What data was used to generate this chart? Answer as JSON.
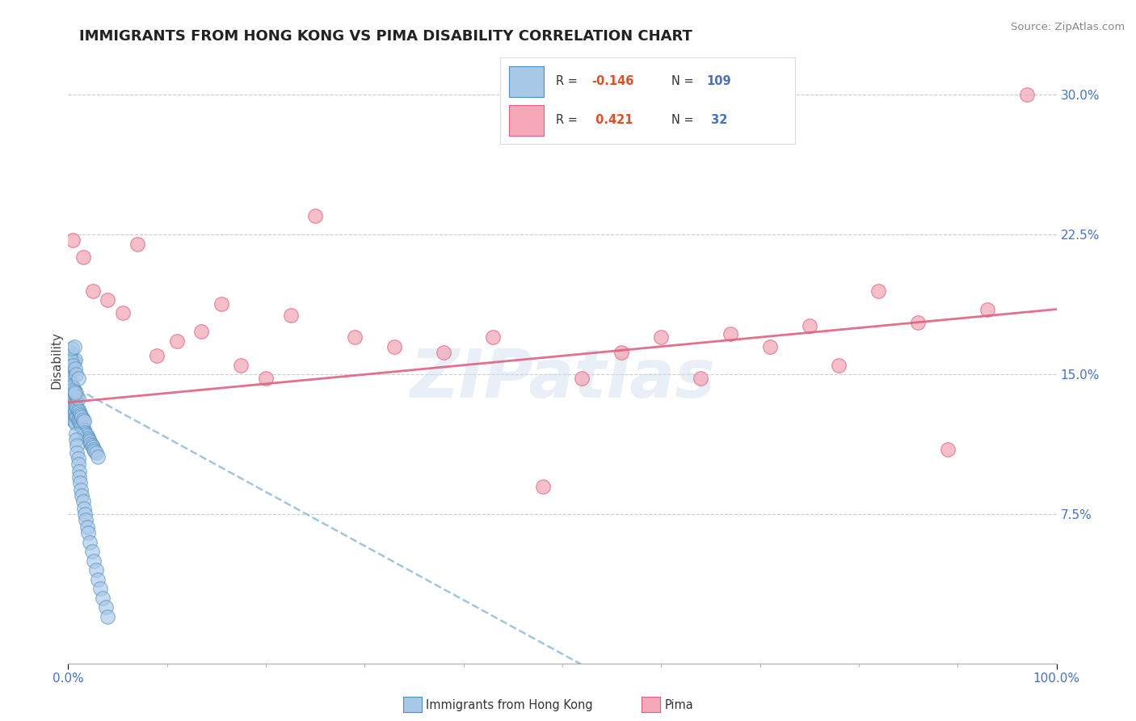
{
  "title": "IMMIGRANTS FROM HONG KONG VS PIMA DISABILITY CORRELATION CHART",
  "source": "Source: ZipAtlas.com",
  "ylabel": "Disability",
  "xlabel": "",
  "xlim": [
    0.0,
    1.0
  ],
  "ylim": [
    -0.005,
    0.32
  ],
  "yticks": [
    0.075,
    0.15,
    0.225,
    0.3
  ],
  "ytick_labels": [
    "7.5%",
    "15.0%",
    "22.5%",
    "30.0%"
  ],
  "xtick_labels": [
    "0.0%",
    "100.0%"
  ],
  "blue_R": -0.146,
  "blue_N": 109,
  "pink_R": 0.421,
  "pink_N": 32,
  "blue_color": "#a8c8e8",
  "pink_color": "#f4a8b8",
  "blue_edge_color": "#5090c0",
  "pink_edge_color": "#e06080",
  "pink_line_color": "#e06080",
  "blue_line_color": "#88b8d8",
  "background_color": "#ffffff",
  "watermark": "ZIPatlas",
  "title_fontsize": 13,
  "blue_x": [
    0.001,
    0.001,
    0.002,
    0.002,
    0.002,
    0.003,
    0.003,
    0.003,
    0.003,
    0.004,
    0.004,
    0.004,
    0.004,
    0.005,
    0.005,
    0.005,
    0.005,
    0.005,
    0.006,
    0.006,
    0.006,
    0.006,
    0.007,
    0.007,
    0.007,
    0.007,
    0.008,
    0.008,
    0.008,
    0.009,
    0.009,
    0.009,
    0.01,
    0.01,
    0.01,
    0.011,
    0.011,
    0.012,
    0.012,
    0.013,
    0.013,
    0.014,
    0.014,
    0.015,
    0.015,
    0.016,
    0.016,
    0.017,
    0.018,
    0.019,
    0.02,
    0.021,
    0.022,
    0.023,
    0.024,
    0.025,
    0.026,
    0.027,
    0.028,
    0.03,
    0.001,
    0.001,
    0.002,
    0.002,
    0.003,
    0.003,
    0.004,
    0.004,
    0.005,
    0.005,
    0.006,
    0.006,
    0.007,
    0.007,
    0.008,
    0.008,
    0.009,
    0.009,
    0.01,
    0.01,
    0.011,
    0.011,
    0.012,
    0.013,
    0.014,
    0.015,
    0.016,
    0.017,
    0.018,
    0.019,
    0.02,
    0.022,
    0.024,
    0.026,
    0.028,
    0.03,
    0.032,
    0.035,
    0.038,
    0.04,
    0.001,
    0.002,
    0.003,
    0.004,
    0.005,
    0.006,
    0.007,
    0.008,
    0.01
  ],
  "blue_y": [
    0.135,
    0.14,
    0.132,
    0.138,
    0.145,
    0.13,
    0.136,
    0.142,
    0.128,
    0.133,
    0.139,
    0.144,
    0.127,
    0.131,
    0.137,
    0.143,
    0.126,
    0.132,
    0.129,
    0.134,
    0.14,
    0.125,
    0.13,
    0.136,
    0.141,
    0.124,
    0.128,
    0.133,
    0.139,
    0.127,
    0.132,
    0.138,
    0.126,
    0.131,
    0.137,
    0.125,
    0.13,
    0.124,
    0.129,
    0.123,
    0.128,
    0.122,
    0.127,
    0.121,
    0.126,
    0.12,
    0.125,
    0.119,
    0.118,
    0.117,
    0.116,
    0.115,
    0.114,
    0.113,
    0.112,
    0.111,
    0.11,
    0.109,
    0.108,
    0.106,
    0.15,
    0.148,
    0.152,
    0.146,
    0.154,
    0.144,
    0.155,
    0.143,
    0.156,
    0.142,
    0.157,
    0.141,
    0.158,
    0.14,
    0.118,
    0.115,
    0.112,
    0.108,
    0.105,
    0.102,
    0.098,
    0.095,
    0.092,
    0.088,
    0.085,
    0.082,
    0.078,
    0.075,
    0.072,
    0.068,
    0.065,
    0.06,
    0.055,
    0.05,
    0.045,
    0.04,
    0.035,
    0.03,
    0.025,
    0.02,
    0.16,
    0.162,
    0.158,
    0.164,
    0.155,
    0.165,
    0.153,
    0.15,
    0.148
  ],
  "pink_x": [
    0.005,
    0.015,
    0.025,
    0.04,
    0.055,
    0.07,
    0.09,
    0.11,
    0.135,
    0.155,
    0.175,
    0.2,
    0.225,
    0.25,
    0.29,
    0.33,
    0.38,
    0.43,
    0.48,
    0.52,
    0.56,
    0.6,
    0.64,
    0.67,
    0.71,
    0.75,
    0.78,
    0.82,
    0.86,
    0.89,
    0.93,
    0.97
  ],
  "pink_y": [
    0.222,
    0.213,
    0.195,
    0.19,
    0.183,
    0.22,
    0.16,
    0.168,
    0.173,
    0.188,
    0.155,
    0.148,
    0.182,
    0.235,
    0.17,
    0.165,
    0.162,
    0.17,
    0.09,
    0.148,
    0.162,
    0.17,
    0.148,
    0.172,
    0.165,
    0.176,
    0.155,
    0.195,
    0.178,
    0.11,
    0.185,
    0.3
  ],
  "legend_blue_text_color": "#e05020",
  "legend_pink_text_color": "#e05020",
  "legend_N_color": "#4472c4",
  "axis_label_color": "#4472c4"
}
